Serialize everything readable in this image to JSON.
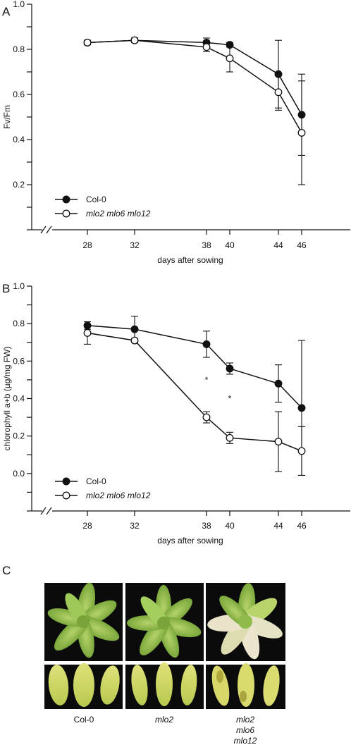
{
  "chart_data": [
    {
      "panel": "A",
      "type": "line",
      "ylabel": "Fv/Fm",
      "xlabel": "days after sowing",
      "x": [
        28,
        32,
        38,
        40,
        44,
        46
      ],
      "xticks": [
        "28",
        "32",
        "38",
        "40",
        "44",
        "46"
      ],
      "yticks": [
        "0.2",
        "0.4",
        "0.6",
        "0.8",
        "1.0"
      ],
      "ylim": [
        0.0,
        1.0
      ],
      "legend": "bottom-left",
      "series": [
        {
          "name": "Col-0",
          "marker": "filled-circle",
          "values": [
            0.83,
            0.84,
            0.83,
            0.82,
            0.69,
            0.51
          ],
          "errors": [
            0.01,
            0.01,
            0.02,
            0.01,
            0.15,
            0.18
          ]
        },
        {
          "name": "mlo2 mlo6 mlo12",
          "marker": "open-circle",
          "values": [
            0.83,
            0.84,
            0.81,
            0.76,
            0.61,
            0.43
          ],
          "errors": [
            0.01,
            0.01,
            0.02,
            0.06,
            0.08,
            0.23
          ]
        }
      ],
      "annotations": []
    },
    {
      "panel": "B",
      "type": "line",
      "ylabel": "chlorophyll a+b (µg/mg FW)",
      "xlabel": "days after sowing",
      "x": [
        28,
        32,
        38,
        40,
        44,
        46
      ],
      "xticks": [
        "28",
        "32",
        "38",
        "40",
        "44",
        "46"
      ],
      "yticks": [
        "0.0",
        "0.2",
        "0.4",
        "0.6",
        "0.8",
        "1.0"
      ],
      "ylim": [
        -0.2,
        1.0
      ],
      "legend": "bottom-left",
      "series": [
        {
          "name": "Col-0",
          "marker": "filled-circle",
          "values": [
            0.79,
            0.77,
            0.69,
            0.56,
            0.48,
            0.35
          ],
          "errors": [
            0.02,
            0.07,
            0.07,
            0.03,
            0.1,
            0.36
          ]
        },
        {
          "name": "mlo2 mlo6 mlo12",
          "marker": "open-circle",
          "values": [
            0.75,
            0.71,
            0.3,
            0.19,
            0.17,
            0.12
          ],
          "errors": [
            0.06,
            0.01,
            0.03,
            0.03,
            0.16,
            0.13
          ]
        }
      ],
      "annotations": [
        {
          "text": "*",
          "x": 38,
          "y": 0.5
        },
        {
          "text": "*",
          "x": 40,
          "y": 0.4
        }
      ]
    }
  ],
  "panel_labels": {
    "a": "A",
    "b": "B",
    "c": "C"
  },
  "photos": {
    "labels": [
      "Col-0",
      "mlo2",
      "mlo2",
      "mlo6",
      "mlo12"
    ],
    "colors": {
      "leaf": "#8fbf4a",
      "leaf_dark": "#5e8f2a",
      "leaf_yellow": "#d9dd72",
      "leaf_pale": "#e8e3c8",
      "background": "#0a0a0a"
    }
  }
}
